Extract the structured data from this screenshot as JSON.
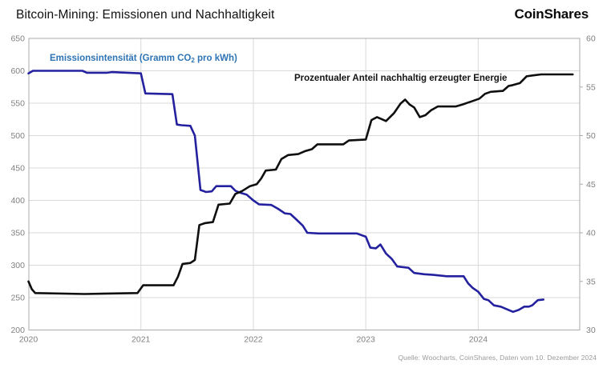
{
  "header": {
    "title": "Bitcoin-Mining: Emissionen und Nachhaltigkeit",
    "logo": "CoinShares"
  },
  "series_labels": {
    "emissions_pre": "Emissionsintensität (Gramm CO",
    "emissions_sub": "2",
    "emissions_post": " pro kWh)",
    "sustainable": "Prozentualer Anteil nachhaltig erzeugter Energie"
  },
  "source_note": "Quelle: Woocharts, CoinShares, Daten vom 10. Dezember 2024",
  "colors": {
    "emissions_line": "#24219f",
    "emissions_label": "#2e74b5",
    "sustainable_line": "#0f0f0f",
    "gridline": "#d9d9d9",
    "axis_border": "#ababab",
    "tick_label": "#808080"
  },
  "chart_data": {
    "type": "line",
    "title": "Bitcoin-Mining: Emissionen und Nachhaltigkeit",
    "grid": true,
    "legend_position": "inline-annotations",
    "x_axis": {
      "range": [
        2020,
        2024.903
      ],
      "ticks": [
        2020,
        2021,
        2022,
        2023,
        2024
      ]
    },
    "y_left": {
      "label": "Emissionsintensität (Gramm CO2 pro kWh)",
      "range": [
        200,
        650
      ],
      "ticks": [
        650,
        600,
        550,
        500,
        450,
        400,
        350,
        300,
        250,
        200
      ]
    },
    "y_right": {
      "label": "Prozentualer Anteil nachhaltig erzeugter Energie (%)",
      "range": [
        30,
        60
      ],
      "ticks": [
        60,
        55,
        50,
        45,
        40,
        35,
        30
      ]
    },
    "series": [
      {
        "name": "Emissionsintensität (Gramm CO2 pro kWh)",
        "axis": "left",
        "color": "#24219f",
        "points": [
          [
            2020.0,
            596
          ],
          [
            2020.04,
            600
          ],
          [
            2020.48,
            600
          ],
          [
            2020.52,
            597
          ],
          [
            2020.7,
            597
          ],
          [
            2020.74,
            598
          ],
          [
            2021.0,
            596
          ],
          [
            2021.04,
            565
          ],
          [
            2021.28,
            564
          ],
          [
            2021.32,
            517
          ],
          [
            2021.36,
            516
          ],
          [
            2021.44,
            515
          ],
          [
            2021.48,
            500
          ],
          [
            2021.53,
            416
          ],
          [
            2021.58,
            413
          ],
          [
            2021.63,
            414
          ],
          [
            2021.67,
            422
          ],
          [
            2021.8,
            422
          ],
          [
            2021.84,
            415
          ],
          [
            2021.88,
            412
          ],
          [
            2021.94,
            409
          ],
          [
            2022.0,
            400
          ],
          [
            2022.05,
            394
          ],
          [
            2022.16,
            393
          ],
          [
            2022.22,
            387
          ],
          [
            2022.28,
            380
          ],
          [
            2022.33,
            379
          ],
          [
            2022.38,
            371
          ],
          [
            2022.44,
            361
          ],
          [
            2022.48,
            350
          ],
          [
            2022.58,
            349
          ],
          [
            2022.92,
            349
          ],
          [
            2023.0,
            344
          ],
          [
            2023.04,
            327
          ],
          [
            2023.09,
            326
          ],
          [
            2023.13,
            332
          ],
          [
            2023.18,
            318
          ],
          [
            2023.23,
            310
          ],
          [
            2023.28,
            298
          ],
          [
            2023.38,
            296
          ],
          [
            2023.43,
            288
          ],
          [
            2023.52,
            286
          ],
          [
            2023.6,
            285
          ],
          [
            2023.72,
            283
          ],
          [
            2023.87,
            283
          ],
          [
            2023.91,
            272
          ],
          [
            2023.95,
            265
          ],
          [
            2024.0,
            259
          ],
          [
            2024.05,
            248
          ],
          [
            2024.09,
            246
          ],
          [
            2024.14,
            238
          ],
          [
            2024.2,
            236
          ],
          [
            2024.27,
            231
          ],
          [
            2024.31,
            228
          ],
          [
            2024.36,
            231
          ],
          [
            2024.41,
            236
          ],
          [
            2024.45,
            236
          ],
          [
            2024.48,
            238
          ],
          [
            2024.53,
            246
          ],
          [
            2024.58,
            247
          ]
        ]
      },
      {
        "name": "Prozentualer Anteil nachhaltig erzeugter Energie (%)",
        "axis": "right",
        "color": "#0f0f0f",
        "points": [
          [
            2020.0,
            35.0
          ],
          [
            2020.03,
            34.2
          ],
          [
            2020.06,
            33.8
          ],
          [
            2020.5,
            33.7
          ],
          [
            2020.97,
            33.8
          ],
          [
            2021.02,
            34.6
          ],
          [
            2021.29,
            34.6
          ],
          [
            2021.33,
            35.5
          ],
          [
            2021.37,
            36.8
          ],
          [
            2021.44,
            36.9
          ],
          [
            2021.48,
            37.2
          ],
          [
            2021.52,
            40.8
          ],
          [
            2021.57,
            41.0
          ],
          [
            2021.64,
            41.1
          ],
          [
            2021.69,
            42.9
          ],
          [
            2021.79,
            43.0
          ],
          [
            2021.84,
            44.0
          ],
          [
            2021.9,
            44.3
          ],
          [
            2021.97,
            44.8
          ],
          [
            2022.03,
            45.0
          ],
          [
            2022.07,
            45.6
          ],
          [
            2022.11,
            46.4
          ],
          [
            2022.2,
            46.5
          ],
          [
            2022.25,
            47.6
          ],
          [
            2022.31,
            48.0
          ],
          [
            2022.4,
            48.1
          ],
          [
            2022.46,
            48.4
          ],
          [
            2022.52,
            48.6
          ],
          [
            2022.57,
            49.1
          ],
          [
            2022.8,
            49.1
          ],
          [
            2022.85,
            49.5
          ],
          [
            2023.0,
            49.6
          ],
          [
            2023.05,
            51.6
          ],
          [
            2023.1,
            51.9
          ],
          [
            2023.14,
            51.7
          ],
          [
            2023.18,
            51.5
          ],
          [
            2023.25,
            52.3
          ],
          [
            2023.31,
            53.3
          ],
          [
            2023.35,
            53.7
          ],
          [
            2023.39,
            53.2
          ],
          [
            2023.43,
            52.9
          ],
          [
            2023.48,
            51.9
          ],
          [
            2023.53,
            52.1
          ],
          [
            2023.58,
            52.6
          ],
          [
            2023.64,
            53.0
          ],
          [
            2023.8,
            53.0
          ],
          [
            2023.86,
            53.2
          ],
          [
            2023.91,
            53.4
          ],
          [
            2023.96,
            53.6
          ],
          [
            2024.01,
            53.8
          ],
          [
            2024.06,
            54.3
          ],
          [
            2024.11,
            54.5
          ],
          [
            2024.22,
            54.6
          ],
          [
            2024.27,
            55.1
          ],
          [
            2024.31,
            55.2
          ],
          [
            2024.37,
            55.4
          ],
          [
            2024.43,
            56.1
          ],
          [
            2024.49,
            56.2
          ],
          [
            2024.56,
            56.3
          ],
          [
            2024.84,
            56.3
          ]
        ]
      }
    ]
  }
}
